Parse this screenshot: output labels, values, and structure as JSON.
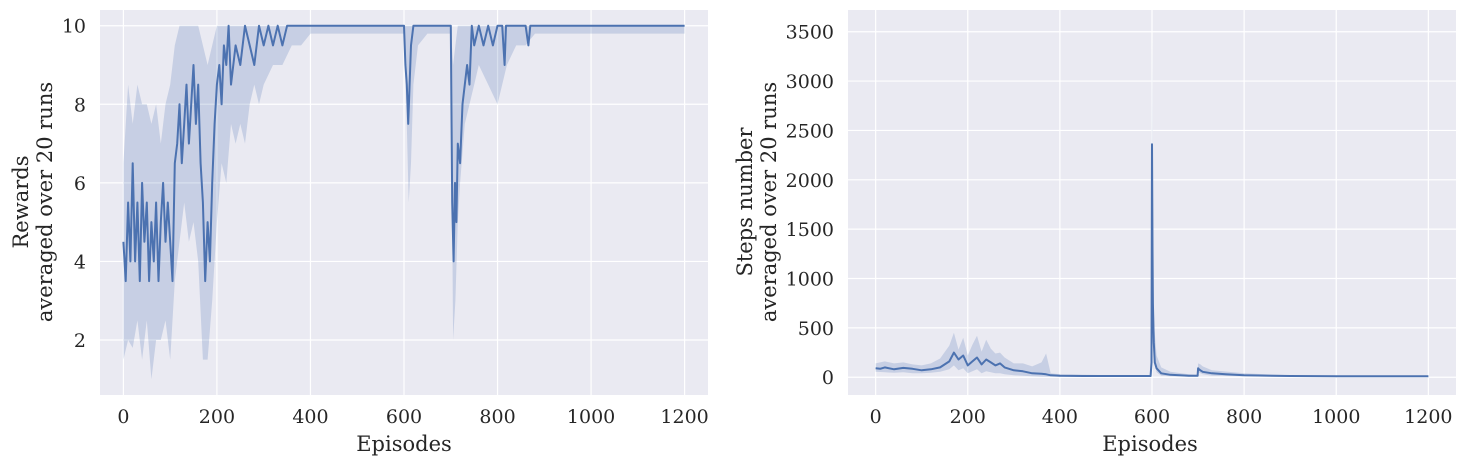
{
  "colors": {
    "line": "#4c72b0",
    "band": "#4c72b0",
    "background": "#eaeaf2",
    "grid": "#ffffff"
  },
  "chart_data": [
    {
      "type": "line",
      "xlabel": "Episodes",
      "ylabel": [
        "Rewards",
        "averaged over 20 runs"
      ],
      "xlim": [
        -50,
        1250
      ],
      "ylim": [
        0.6,
        10.4
      ],
      "xticks": [
        0,
        200,
        400,
        600,
        800,
        1000,
        1200
      ],
      "yticks": [
        2,
        4,
        6,
        8,
        10
      ],
      "xtick_labels": [
        "0",
        "200",
        "400",
        "600",
        "800",
        "1000",
        "1200"
      ],
      "ytick_labels": [
        "2",
        "4",
        "6",
        "8",
        "10"
      ],
      "grid": true,
      "series": [
        {
          "mean": {
            "x": [
              0,
              5,
              10,
              15,
              20,
              25,
              30,
              35,
              40,
              45,
              50,
              55,
              60,
              65,
              70,
              75,
              80,
              85,
              90,
              95,
              100,
              105,
              110,
              115,
              120,
              125,
              130,
              135,
              140,
              145,
              150,
              155,
              160,
              165,
              170,
              175,
              180,
              185,
              190,
              195,
              200,
              205,
              210,
              215,
              220,
              225,
              230,
              240,
              250,
              260,
              270,
              280,
              290,
              300,
              310,
              320,
              330,
              340,
              350,
              360,
              370,
              380,
              390,
              400,
              600,
              603,
              606,
              609,
              612,
              615,
              620,
              630,
              640,
              650,
              660,
              680,
              700,
              703,
              706,
              709,
              712,
              715,
              720,
              725,
              730,
              735,
              740,
              745,
              750,
              760,
              770,
              780,
              790,
              800,
              810,
              815,
              818,
              830,
              860,
              866,
              870,
              900,
              1000,
              1100,
              1200
            ],
            "y": [
              4.5,
              3.5,
              5.5,
              4.0,
              6.5,
              4.0,
              5.5,
              3.5,
              6.0,
              4.5,
              5.5,
              3.5,
              5.0,
              4.0,
              5.5,
              3.5,
              5.0,
              6.0,
              4.5,
              5.5,
              4.5,
              3.5,
              6.5,
              7.0,
              8.0,
              6.5,
              7.5,
              8.5,
              7.0,
              8.0,
              9.0,
              7.5,
              8.5,
              6.5,
              5.5,
              3.5,
              5.0,
              4.0,
              6.0,
              7.5,
              8.5,
              9.0,
              8.0,
              9.5,
              9.0,
              10.0,
              8.5,
              9.5,
              9.0,
              10.0,
              9.5,
              9.0,
              10.0,
              9.5,
              10.0,
              9.5,
              10.0,
              9.5,
              10.0,
              10.0,
              10.0,
              10.0,
              10.0,
              10.0,
              10.0,
              9.0,
              8.5,
              7.5,
              8.5,
              9.5,
              10.0,
              10.0,
              10.0,
              10.0,
              10.0,
              10.0,
              10.0,
              5.5,
              4.0,
              6.0,
              5.0,
              7.0,
              6.5,
              8.0,
              8.5,
              9.0,
              8.5,
              10.0,
              9.5,
              10.0,
              9.5,
              10.0,
              9.5,
              10.0,
              10.0,
              9.0,
              10.0,
              10.0,
              10.0,
              9.5,
              10.0,
              10.0,
              10.0,
              10.0,
              10.0
            ]
          },
          "band": {
            "x": [
              0,
              10,
              20,
              30,
              40,
              50,
              60,
              70,
              80,
              90,
              100,
              110,
              120,
              130,
              140,
              150,
              160,
              170,
              180,
              190,
              200,
              210,
              220,
              230,
              240,
              250,
              260,
              270,
              280,
              290,
              300,
              320,
              340,
              360,
              380,
              400,
              600,
              605,
              610,
              615,
              620,
              630,
              650,
              700,
              705,
              710,
              715,
              720,
              730,
              740,
              750,
              760,
              780,
              800,
              820,
              840,
              860,
              880,
              900,
              1200
            ],
            "lower": [
              1.5,
              2.0,
              1.8,
              2.5,
              1.5,
              2.5,
              1.0,
              2.0,
              2.0,
              2.5,
              1.5,
              3.5,
              4.5,
              5.5,
              4.5,
              5.0,
              4.0,
              1.5,
              1.5,
              3.0,
              5.0,
              6.5,
              6.0,
              7.5,
              7.0,
              7.5,
              7.0,
              8.0,
              8.5,
              8.0,
              8.5,
              9.0,
              9.0,
              9.5,
              9.5,
              9.8,
              9.8,
              8.0,
              5.5,
              6.5,
              8.5,
              9.5,
              9.8,
              9.8,
              2.0,
              3.0,
              5.0,
              6.0,
              7.5,
              8.0,
              8.5,
              9.0,
              8.5,
              8.0,
              9.0,
              9.5,
              9.5,
              9.8,
              9.8,
              9.8
            ],
            "upper": [
              6.5,
              8.5,
              7.5,
              8.5,
              8.0,
              8.0,
              7.5,
              8.0,
              7.0,
              8.0,
              8.5,
              9.5,
              10.0,
              10.0,
              10.0,
              10.0,
              10.0,
              9.5,
              9.0,
              9.5,
              10.0,
              10.0,
              10.0,
              10.0,
              10.0,
              10.0,
              10.0,
              10.0,
              10.0,
              10.0,
              10.0,
              10.0,
              10.0,
              10.0,
              10.0,
              10.0,
              10.0,
              10.0,
              10.0,
              10.0,
              10.0,
              10.0,
              10.0,
              10.0,
              9.0,
              9.5,
              10.0,
              10.0,
              10.0,
              10.0,
              10.0,
              10.0,
              10.0,
              10.0,
              10.0,
              10.0,
              10.0,
              10.0,
              10.0,
              10.0
            ]
          }
        }
      ]
    },
    {
      "type": "line",
      "xlabel": "Episodes",
      "ylabel": [
        "Steps number",
        "averaged over 20 runs"
      ],
      "xlim": [
        -60,
        1260
      ],
      "ylim": [
        -180,
        3720
      ],
      "xticks": [
        0,
        200,
        400,
        600,
        800,
        1000,
        1200
      ],
      "yticks": [
        0,
        500,
        1000,
        1500,
        2000,
        2500,
        3000,
        3500
      ],
      "xtick_labels": [
        "0",
        "200",
        "400",
        "600",
        "800",
        "1000",
        "1200"
      ],
      "ytick_labels": [
        "0",
        "500",
        "1000",
        "1500",
        "2000",
        "2500",
        "3000",
        "3500"
      ],
      "grid": true,
      "series": [
        {
          "mean": {
            "x": [
              0,
              10,
              20,
              40,
              60,
              80,
              100,
              120,
              140,
              160,
              170,
              180,
              190,
              200,
              210,
              220,
              230,
              240,
              250,
              260,
              270,
              280,
              300,
              320,
              340,
              360,
              370,
              380,
              400,
              450,
              500,
              550,
              597,
              599,
              600,
              601,
              602,
              604,
              606,
              610,
              620,
              640,
              660,
              680,
              699,
              700,
              702,
              705,
              710,
              730,
              760,
              800,
              900,
              1000,
              1100,
              1200
            ],
            "y": [
              90,
              85,
              100,
              80,
              95,
              85,
              70,
              80,
              100,
              160,
              250,
              180,
              220,
              120,
              160,
              200,
              130,
              180,
              150,
              120,
              140,
              100,
              70,
              60,
              40,
              35,
              30,
              20,
              15,
              12,
              12,
              12,
              12,
              150,
              2360,
              1300,
              750,
              350,
              150,
              90,
              40,
              25,
              20,
              15,
              15,
              90,
              80,
              70,
              55,
              40,
              30,
              20,
              12,
              10,
              10,
              10
            ]
          },
          "band": {
            "x": [
              0,
              20,
              40,
              60,
              80,
              100,
              120,
              140,
              160,
              170,
              180,
              190,
              200,
              210,
              220,
              230,
              240,
              250,
              260,
              270,
              280,
              300,
              320,
              340,
              360,
              370,
              380,
              400,
              500,
              597,
              599,
              600,
              601,
              602,
              605,
              610,
              620,
              640,
              680,
              699,
              700,
              705,
              710,
              730,
              800,
              900,
              1200
            ],
            "lower": [
              55,
              50,
              45,
              50,
              40,
              40,
              45,
              55,
              80,
              120,
              70,
              90,
              40,
              60,
              80,
              40,
              60,
              50,
              40,
              40,
              30,
              20,
              15,
              10,
              5,
              5,
              5,
              5,
              5,
              5,
              20,
              1150,
              800,
              400,
              150,
              50,
              15,
              10,
              5,
              5,
              50,
              40,
              30,
              15,
              10,
              5,
              5
            ],
            "upper": [
              140,
              160,
              140,
              150,
              130,
              120,
              140,
              190,
              320,
              450,
              280,
              400,
              220,
              330,
              420,
              260,
              380,
              290,
              240,
              250,
              200,
              140,
              140,
              110,
              150,
              240,
              40,
              30,
              22,
              22,
              500,
              3530,
              1900,
              1150,
              500,
              220,
              100,
              55,
              30,
              25,
              140,
              130,
              110,
              70,
              40,
              20,
              15
            ]
          }
        }
      ]
    }
  ]
}
